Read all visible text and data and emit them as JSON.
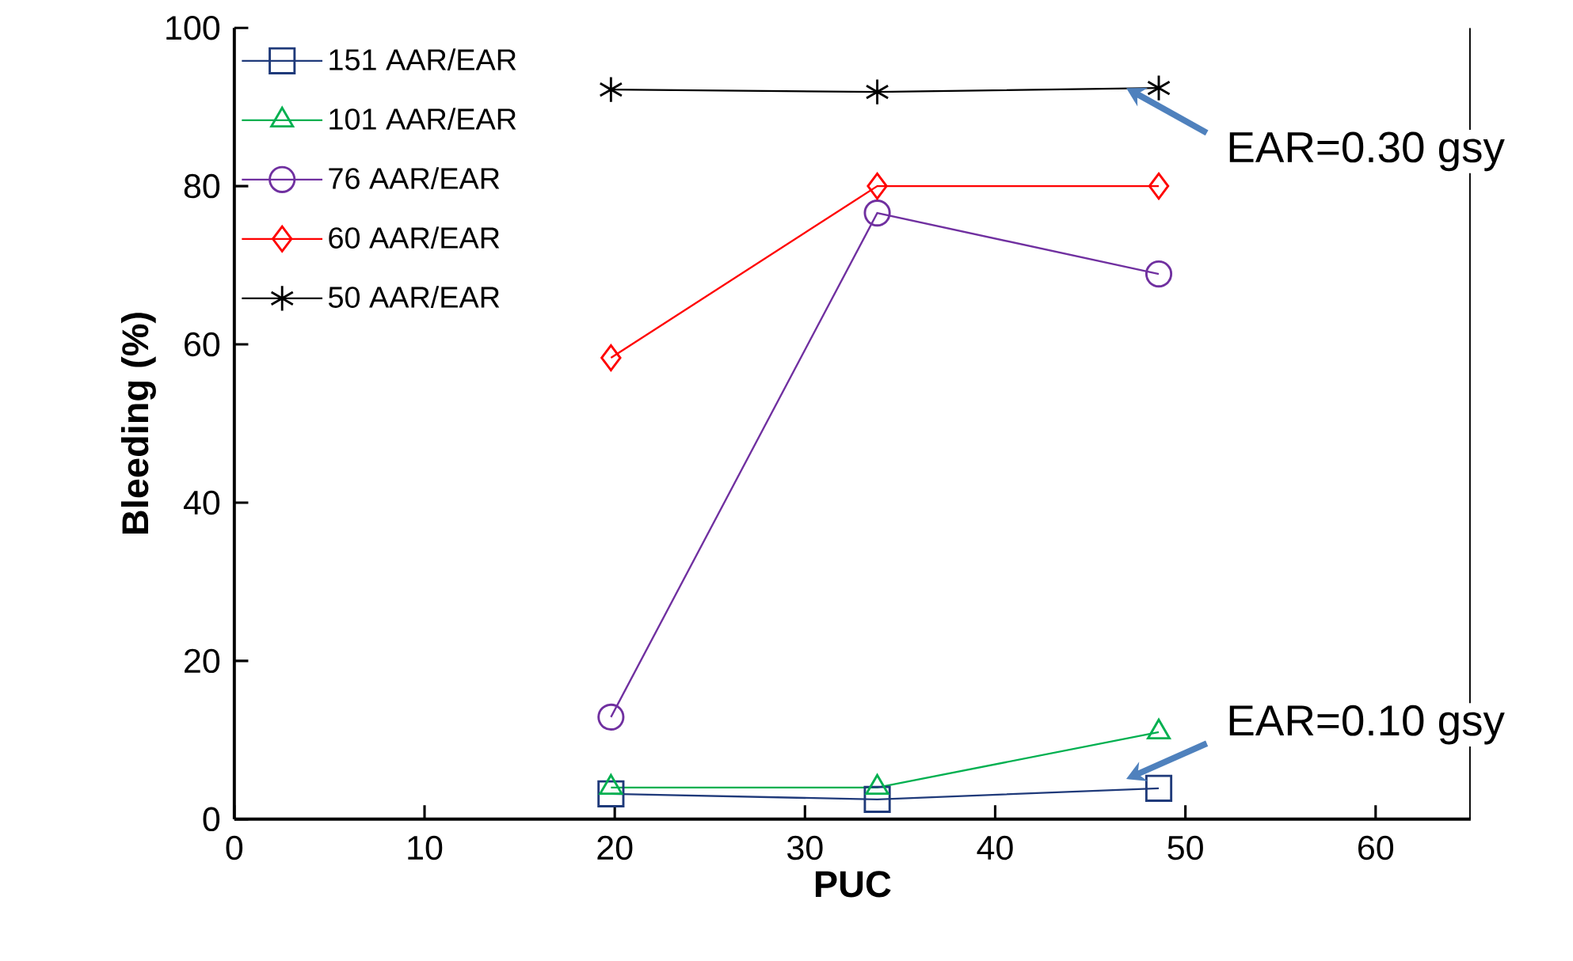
{
  "chart_data": {
    "type": "line",
    "xlabel": "PUC",
    "ylabel": "Bleeding (%)",
    "x": [
      19.8,
      33.8,
      48.6
    ],
    "xlim": [
      0,
      65
    ],
    "xticks": [
      0,
      10,
      20,
      30,
      40,
      50,
      60
    ],
    "ylim": [
      0,
      100
    ],
    "yticks": [
      0,
      20,
      40,
      60,
      80,
      100
    ],
    "legend": "top left",
    "series": [
      {
        "name": "151 AAR/EAR",
        "color": "#1f3a7a",
        "marker": "square",
        "values": [
          3.2,
          2.5,
          3.9
        ]
      },
      {
        "name": "101 AAR/EAR",
        "color": "#00b050",
        "marker": "triangle",
        "values": [
          4.0,
          4.0,
          11.0
        ]
      },
      {
        "name": "76 AAR/EAR",
        "color": "#7030a0",
        "marker": "circle",
        "values": [
          12.9,
          76.6,
          68.9
        ]
      },
      {
        "name": "60 AAR/EAR",
        "color": "#ff0000",
        "marker": "diamond",
        "values": [
          58.3,
          80.0,
          80.0
        ]
      },
      {
        "name": "50 AAR/EAR",
        "color": "#000000",
        "marker": "cross",
        "values": [
          92.2,
          91.9,
          92.4
        ]
      }
    ],
    "annotations": [
      {
        "text": "EAR=0.30 gsy",
        "x": 48.6,
        "y": 92.4
      },
      {
        "text": "EAR=0.10 gsy",
        "x": 48.6,
        "y": 3.9
      }
    ]
  }
}
